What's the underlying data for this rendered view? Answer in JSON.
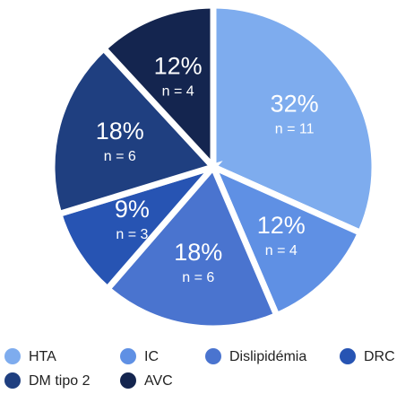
{
  "chart_data": {
    "type": "pie",
    "categories": [
      "HTA",
      "IC",
      "Dislipidémia",
      "DRC",
      "DM tipo 2",
      "AVC"
    ],
    "values": [
      32,
      12,
      18,
      9,
      18,
      12
    ],
    "value_labels": [
      "32%",
      "12%",
      "18%",
      "9%",
      "18%",
      "12%"
    ],
    "n_labels": [
      "n = 11",
      "n = 4",
      "n = 6",
      "n = 3",
      "n = 6",
      "n = 4"
    ],
    "colors": [
      "#7eacee",
      "#5f90e4",
      "#4a74cf",
      "#2754b3",
      "#1f3f80",
      "#14254f"
    ],
    "legend": "bottom"
  }
}
